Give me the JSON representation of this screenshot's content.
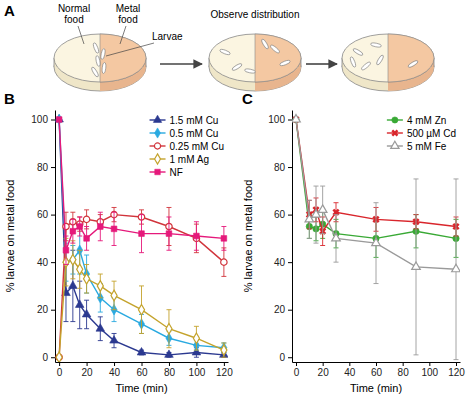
{
  "diagram": {
    "panel_label": "A",
    "normal_food": "Normal food",
    "metal_food": "Metal food",
    "larvae": "Larvae",
    "step": "Observe distribution"
  },
  "chart_data": [
    {
      "type": "line",
      "title": "B",
      "xlabel": "Time (min)",
      "ylabel": "% larvae on metal food",
      "x": [
        0,
        5,
        10,
        15,
        20,
        30,
        40,
        60,
        80,
        100,
        120
      ],
      "xlim": [
        -3,
        123
      ],
      "xticks": [
        0,
        20,
        40,
        60,
        80,
        100,
        120
      ],
      "ylim": [
        -2,
        104
      ],
      "yticks": [
        0,
        20,
        40,
        60,
        80,
        100
      ],
      "grid": false,
      "legend": "upper right",
      "series": [
        {
          "name": "1.5 mM Cu",
          "color": "#2b3990",
          "marker": "triangle",
          "values": [
            100,
            27,
            30,
            22,
            18,
            12,
            7,
            2,
            1,
            2,
            1
          ],
          "errors": [
            0,
            12,
            15,
            10,
            6,
            5,
            3,
            1,
            1,
            2,
            1
          ]
        },
        {
          "name": "0.5 mM Cu",
          "color": "#29a9e0",
          "marker": "diamond",
          "values": [
            100,
            40,
            41,
            45,
            35,
            25,
            20,
            14,
            8,
            5,
            4
          ],
          "errors": [
            0,
            8,
            6,
            10,
            8,
            6,
            5,
            4,
            3,
            2,
            2
          ]
        },
        {
          "name": "0.25 mM Cu",
          "color": "#d1343b",
          "marker": "circle-open",
          "values": [
            0,
            55,
            57,
            56,
            58,
            57,
            60,
            59,
            55,
            50,
            40
          ],
          "errors": [
            0,
            6,
            4,
            3,
            4,
            3,
            3,
            3,
            8,
            6,
            6
          ]
        },
        {
          "name": "1 mM Ag",
          "color": "#c4a32c",
          "marker": "diamond-open",
          "values": [
            0,
            40,
            41,
            37,
            33,
            30,
            26,
            20,
            12,
            8,
            3
          ],
          "errors": [
            0,
            10,
            8,
            8,
            6,
            5,
            6,
            10,
            8,
            5,
            3
          ]
        },
        {
          "name": "NF",
          "color": "#e5197b",
          "marker": "square",
          "values": [
            100,
            45,
            53,
            55,
            50,
            55,
            54,
            52,
            52,
            51,
            50
          ],
          "errors": [
            0,
            6,
            5,
            4,
            5,
            6,
            7,
            8,
            7,
            6,
            5
          ]
        }
      ]
    },
    {
      "type": "line",
      "title": "C",
      "xlabel": "Time (min)",
      "ylabel": "% larvae on metal food",
      "x": [
        0,
        10,
        15,
        20,
        30,
        60,
        90,
        120
      ],
      "xlim": [
        -3,
        123
      ],
      "xticks": [
        0,
        20,
        40,
        60,
        80,
        100,
        120
      ],
      "ylim": [
        -2,
        104
      ],
      "yticks": [
        0,
        20,
        40,
        60,
        80,
        100
      ],
      "grid": false,
      "legend": "upper right",
      "series": [
        {
          "name": "4 mM Zn",
          "color": "#39a935",
          "marker": "circle",
          "values": [
            100,
            55,
            54,
            56,
            52,
            50,
            53,
            50
          ],
          "errors": [
            0,
            5,
            5,
            6,
            6,
            8,
            7,
            8
          ]
        },
        {
          "name": "500 µM Cd",
          "color": "#d9262c",
          "marker": "x",
          "values": [
            100,
            60,
            62,
            53,
            61,
            58,
            57,
            55
          ],
          "errors": [
            0,
            6,
            5,
            6,
            4,
            5,
            3,
            4
          ]
        },
        {
          "name": "5 mM Fe",
          "color": "#9a9a9a",
          "marker": "triangle-open",
          "values": [
            100,
            58,
            60,
            62,
            50,
            48,
            38,
            37
          ],
          "errors": [
            0,
            8,
            12,
            10,
            10,
            17,
            37,
            38
          ]
        }
      ]
    }
  ]
}
